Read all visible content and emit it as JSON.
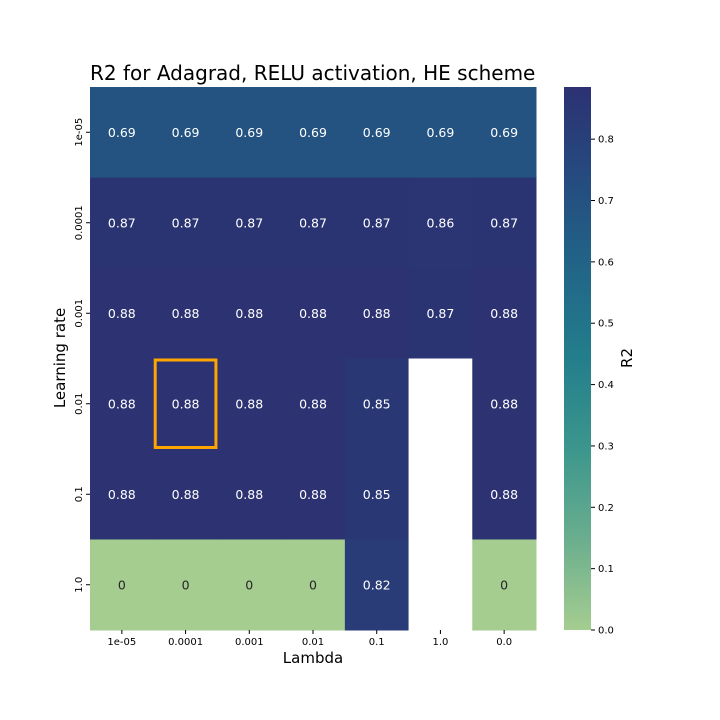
{
  "chart_data": {
    "type": "heatmap",
    "title": "R2 for Adagrad, RELU activation, HE scheme",
    "xlabel": "Lambda",
    "ylabel": "Learning rate",
    "x_categories": [
      "1e-05",
      "0.0001",
      "0.001",
      "0.01",
      "0.1",
      "1.0",
      "0.0"
    ],
    "y_categories": [
      "1e-05",
      "0.0001",
      "0.001",
      "0.01",
      "0.1",
      "1.0"
    ],
    "values": [
      [
        0.69,
        0.69,
        0.69,
        0.69,
        0.69,
        0.69,
        0.69
      ],
      [
        0.87,
        0.87,
        0.87,
        0.87,
        0.87,
        0.86,
        0.87
      ],
      [
        0.88,
        0.88,
        0.88,
        0.88,
        0.88,
        0.87,
        0.88
      ],
      [
        0.88,
        0.88,
        0.88,
        0.88,
        0.85,
        null,
        0.88
      ],
      [
        0.88,
        0.88,
        0.88,
        0.88,
        0.85,
        null,
        0.88
      ],
      [
        0,
        0,
        0,
        0,
        0.82,
        null,
        0
      ]
    ],
    "cell_labels": [
      [
        "0.69",
        "0.69",
        "0.69",
        "0.69",
        "0.69",
        "0.69",
        "0.69"
      ],
      [
        "0.87",
        "0.87",
        "0.87",
        "0.87",
        "0.87",
        "0.86",
        "0.87"
      ],
      [
        "0.88",
        "0.88",
        "0.88",
        "0.88",
        "0.88",
        "0.87",
        "0.88"
      ],
      [
        "0.88",
        "0.88",
        "0.88",
        "0.88",
        "0.85",
        "",
        "0.88"
      ],
      [
        "0.88",
        "0.88",
        "0.88",
        "0.88",
        "0.85",
        "",
        "0.88"
      ],
      [
        "0",
        "0",
        "0",
        "0",
        "0.82",
        "",
        "0"
      ]
    ],
    "highlight_cell": {
      "row": 3,
      "col": 1,
      "color": "#ffa500"
    },
    "colorbar": {
      "label": "R2",
      "vmin": 0.0,
      "vmax": 0.885,
      "ticks": [
        0.0,
        0.1,
        0.2,
        0.3,
        0.4,
        0.5,
        0.6,
        0.7,
        0.8
      ],
      "tick_labels": [
        "0.0",
        "0.1",
        "0.2",
        "0.3",
        "0.4",
        "0.5",
        "0.6",
        "0.7",
        "0.8"
      ],
      "colormap": "crest",
      "color_stops": [
        "#a5cd90",
        "#6aae8e",
        "#3c968d",
        "#237e8b",
        "#216587",
        "#254b7f",
        "#2c3172"
      ]
    },
    "missing_color": "#ffffff"
  }
}
